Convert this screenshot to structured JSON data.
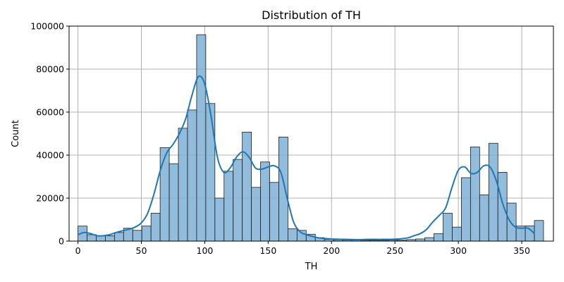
{
  "chart_data": {
    "type": "bar",
    "title": "Distribution of TH",
    "xlabel": "TH",
    "ylabel": "Count",
    "xlim": [
      -7,
      375
    ],
    "ylim": [
      0,
      100000
    ],
    "xticks": [
      0,
      50,
      100,
      150,
      200,
      250,
      300,
      350
    ],
    "yticks": [
      0,
      20000,
      40000,
      60000,
      80000,
      100000
    ],
    "grid": true,
    "bin_width": 7.2,
    "bin_start": 0,
    "bar_color": "#7eb0d5",
    "bar_edge_color": "#1f1f1f",
    "kde_color": "#1f77b4",
    "counts": [
      7000,
      3000,
      2500,
      2500,
      4000,
      6000,
      5000,
      7000,
      13000,
      43500,
      36000,
      52500,
      61000,
      96000,
      64000,
      20000,
      32500,
      38000,
      50700,
      25000,
      36800,
      27300,
      48400,
      5700,
      5000,
      3200,
      1600,
      800,
      600,
      500,
      500,
      400,
      400,
      400,
      500,
      500,
      700,
      1000,
      1600,
      3500,
      13000,
      6500,
      29500,
      43800,
      21500,
      45500,
      32000,
      17700,
      7000,
      7100,
      9600
    ],
    "kde": {
      "x": [
        0,
        5,
        10,
        15,
        20,
        25,
        30,
        35,
        40,
        45,
        50,
        55,
        60,
        65,
        70,
        75,
        80,
        85,
        90,
        95,
        100,
        105,
        110,
        115,
        120,
        125,
        130,
        135,
        140,
        145,
        150,
        155,
        160,
        165,
        170,
        175,
        180,
        190,
        200,
        210,
        220,
        230,
        240,
        250,
        260,
        265,
        270,
        275,
        280,
        285,
        290,
        295,
        300,
        305,
        310,
        315,
        320,
        325,
        330,
        335,
        340,
        345,
        350,
        355,
        360
      ],
      "y": [
        3000,
        4000,
        3500,
        2500,
        2500,
        3000,
        4000,
        4800,
        5500,
        6500,
        8500,
        13000,
        22000,
        33000,
        41000,
        45000,
        50000,
        57000,
        68000,
        76500,
        73000,
        58000,
        39000,
        32000,
        34000,
        39000,
        41500,
        39000,
        34000,
        33500,
        34500,
        35000,
        32000,
        20000,
        9000,
        4500,
        3000,
        1500,
        1000,
        800,
        700,
        800,
        800,
        900,
        1500,
        2500,
        3500,
        5500,
        9000,
        12000,
        15500,
        25000,
        33000,
        34500,
        31500,
        32000,
        35000,
        34500,
        28000,
        17500,
        10000,
        6500,
        6000,
        6000,
        3500
      ]
    }
  }
}
